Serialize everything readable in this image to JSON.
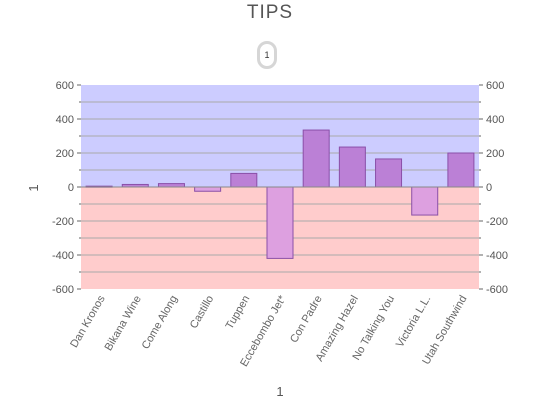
{
  "title": "TIPS",
  "page_button": "1",
  "chart_data": {
    "type": "bar",
    "title": "TIPS",
    "xlabel": "1",
    "ylabel": "1",
    "categories": [
      "Dan Kronos",
      "Bikana Wine",
      "Come Along",
      "Castillo",
      "Tuppen",
      "Eccebombo Jet*",
      "Con Padre",
      "Amazing Hazel",
      "No Talking You",
      "Victoria L.L.",
      "Utah Southwind"
    ],
    "values": [
      5,
      15,
      20,
      -25,
      80,
      -420,
      335,
      235,
      165,
      -165,
      200
    ],
    "ylim": [
      -600,
      600
    ],
    "yticks": [
      -600,
      -400,
      -200,
      0,
      200,
      400,
      600
    ],
    "right_axis": true,
    "grid": true,
    "colors": {
      "positive_band": "#ccccff",
      "negative_band": "#ffcccc",
      "positive_bar": "#bb80d6",
      "negative_bar": "#dda0e0",
      "bar_stroke": "#8a4fa8",
      "gridline": "#aaaaaa"
    }
  }
}
